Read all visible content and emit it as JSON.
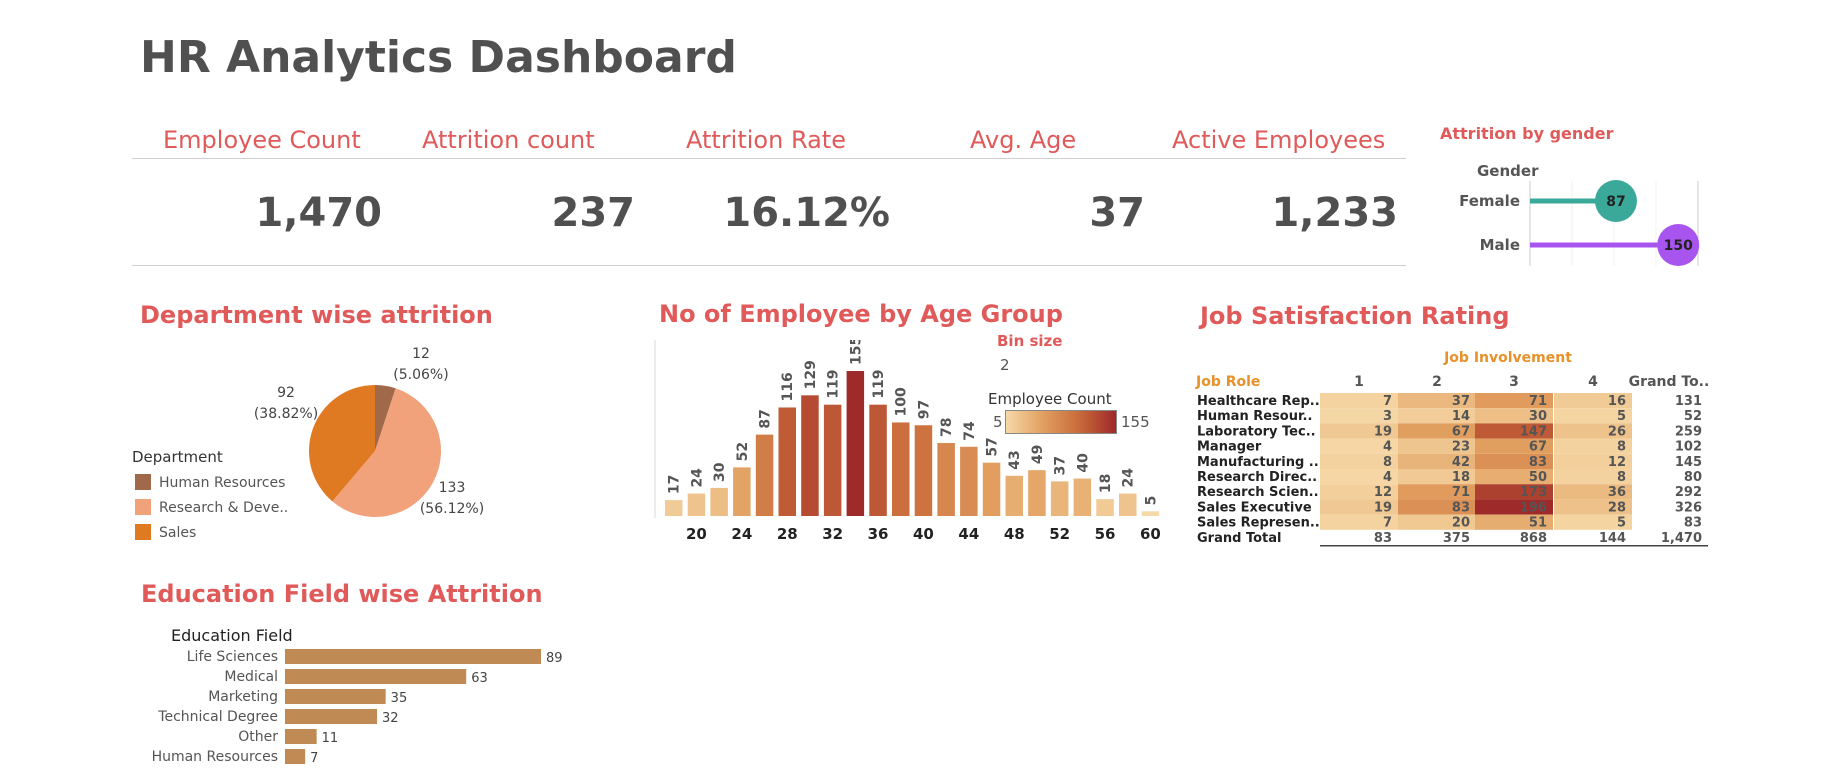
{
  "dashboard": {
    "title": "HR Analytics Dashboard"
  },
  "kpis": [
    {
      "label": "Employee Count",
      "value": "1,470"
    },
    {
      "label": "Attrition  count",
      "value": "237"
    },
    {
      "label": "Attrition Rate",
      "value": "16.12%"
    },
    {
      "label": "Avg. Age",
      "value": "37"
    },
    {
      "label": "Active Employees",
      "value": "1,233"
    }
  ],
  "colors": {
    "accent": "#e05a5a",
    "female": "#3aa99a",
    "male": "#a855f0",
    "bar_edu": "#c08a55"
  },
  "chart_data": [
    {
      "id": "attrition-by-gender",
      "type": "bar",
      "title": "Attrition by gender",
      "dimension_label": "Gender",
      "categories": [
        "Female",
        "Male"
      ],
      "values": [
        87,
        150
      ],
      "xlim": [
        0,
        170
      ]
    },
    {
      "id": "department-attrition",
      "type": "pie",
      "title": "Department wise attrition",
      "legend_title": "Department",
      "legend_position": "left",
      "labels": [
        "Human Resources",
        "Research & Deve..",
        "Sales"
      ],
      "values": [
        12,
        133,
        92
      ],
      "percents": [
        "(5.06%)",
        "(56.12%)",
        "(38.82%)"
      ],
      "colors": [
        "#a0694a",
        "#f2a27a",
        "#e07a22"
      ]
    },
    {
      "id": "age-group",
      "type": "bar",
      "title": "No of Employee by Age Group",
      "bin_label": "Bin size",
      "bin_size": "2",
      "color_legend_title": "Employee Count",
      "color_range": [
        5,
        155
      ],
      "x": [
        18,
        20,
        22,
        24,
        26,
        28,
        30,
        32,
        34,
        36,
        38,
        40,
        42,
        44,
        46,
        48,
        50,
        52,
        54,
        56,
        58,
        60
      ],
      "values": [
        17,
        24,
        30,
        52,
        87,
        116,
        129,
        119,
        155,
        119,
        100,
        97,
        78,
        74,
        57,
        43,
        49,
        37,
        40,
        18,
        24,
        5
      ],
      "x_ticks": [
        "20",
        "24",
        "28",
        "32",
        "36",
        "40",
        "44",
        "48",
        "52",
        "56",
        "60"
      ],
      "ylim": [
        0,
        170
      ]
    },
    {
      "id": "job-satisfaction",
      "type": "heatmap",
      "title": "Job Satisfaction Rating",
      "column_group": "Job Involvement",
      "row_header": "Job Role",
      "columns": [
        "1",
        "2",
        "3",
        "4",
        "Grand To.."
      ],
      "rows": [
        {
          "role": "Healthcare Rep..",
          "values": [
            7,
            37,
            71,
            16
          ],
          "total": 131
        },
        {
          "role": "Human Resour..",
          "values": [
            3,
            14,
            30,
            5
          ],
          "total": 52
        },
        {
          "role": "Laboratory Tec..",
          "values": [
            19,
            67,
            147,
            26
          ],
          "total": 259
        },
        {
          "role": "Manager",
          "values": [
            4,
            23,
            67,
            8
          ],
          "total": 102
        },
        {
          "role": "Manufacturing ..",
          "values": [
            8,
            42,
            83,
            12
          ],
          "total": 145
        },
        {
          "role": "Research Direc..",
          "values": [
            4,
            18,
            50,
            8
          ],
          "total": 80
        },
        {
          "role": "Research Scien..",
          "values": [
            12,
            71,
            173,
            36
          ],
          "total": 292
        },
        {
          "role": "Sales Executive",
          "values": [
            19,
            83,
            196,
            28
          ],
          "total": 326
        },
        {
          "role": "Sales Represen..",
          "values": [
            7,
            20,
            51,
            5
          ],
          "total": 83
        }
      ],
      "grand_total": {
        "role": "Grand Total",
        "values": [
          "83",
          "375",
          "868",
          "144"
        ],
        "total": "1,470"
      }
    },
    {
      "id": "education-attrition",
      "type": "bar",
      "title": "Education Field wise Attrition",
      "dimension_label": "Education Field",
      "categories": [
        "Life Sciences",
        "Medical",
        "Marketing",
        "Technical Degree",
        "Other",
        "Human Resources"
      ],
      "values": [
        89,
        63,
        35,
        32,
        11,
        7
      ],
      "xlim": [
        0,
        95
      ]
    }
  ]
}
